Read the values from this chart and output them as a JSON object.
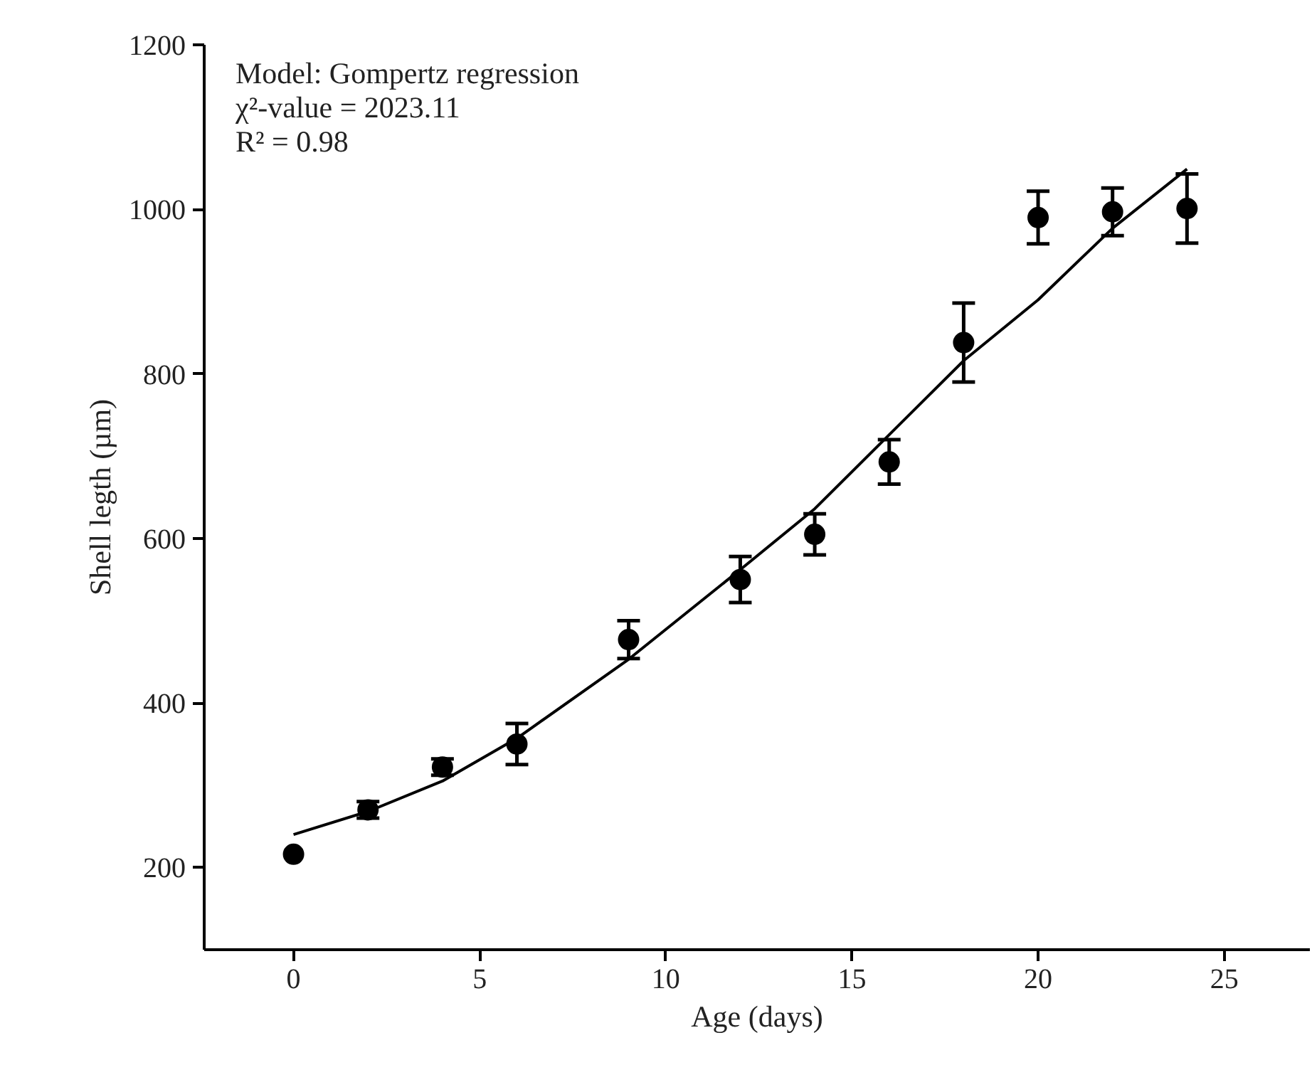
{
  "chart_data": {
    "type": "scatter",
    "xlabel": "Age (days)",
    "ylabel": "Shell legth (µm)",
    "annotations": [
      "Model: Gompertz regression",
      "χ²-value = 2023.11",
      "R² = 0.98"
    ],
    "xlim": [
      -2.4,
      27.3
    ],
    "xticks": [
      0,
      5,
      10,
      15,
      20,
      25
    ],
    "ylim": [
      100,
      1200
    ],
    "yticks": [
      200,
      400,
      600,
      800,
      1000,
      1200
    ],
    "grid": false,
    "marker": "circle",
    "series": [
      {
        "color": "#000000",
        "x": [
          0,
          2,
          4,
          6,
          9,
          12,
          14,
          16,
          18,
          20,
          22,
          24
        ],
        "values": [
          216,
          270,
          322,
          350,
          477,
          550,
          605,
          693,
          838,
          990,
          997,
          1001
        ],
        "errors": [
          null,
          10,
          10,
          25,
          23,
          28,
          25,
          27,
          48,
          32,
          29,
          42
        ]
      },
      {
        "type": "line",
        "color": "#000000",
        "marker": "none",
        "line_style": "solid",
        "x": [
          0,
          2,
          4,
          6,
          9,
          12,
          14,
          16,
          18,
          20,
          22,
          24
        ],
        "values": [
          240,
          268,
          305,
          357,
          453,
          562,
          636,
          726,
          816,
          890,
          977,
          1049
        ]
      }
    ]
  }
}
